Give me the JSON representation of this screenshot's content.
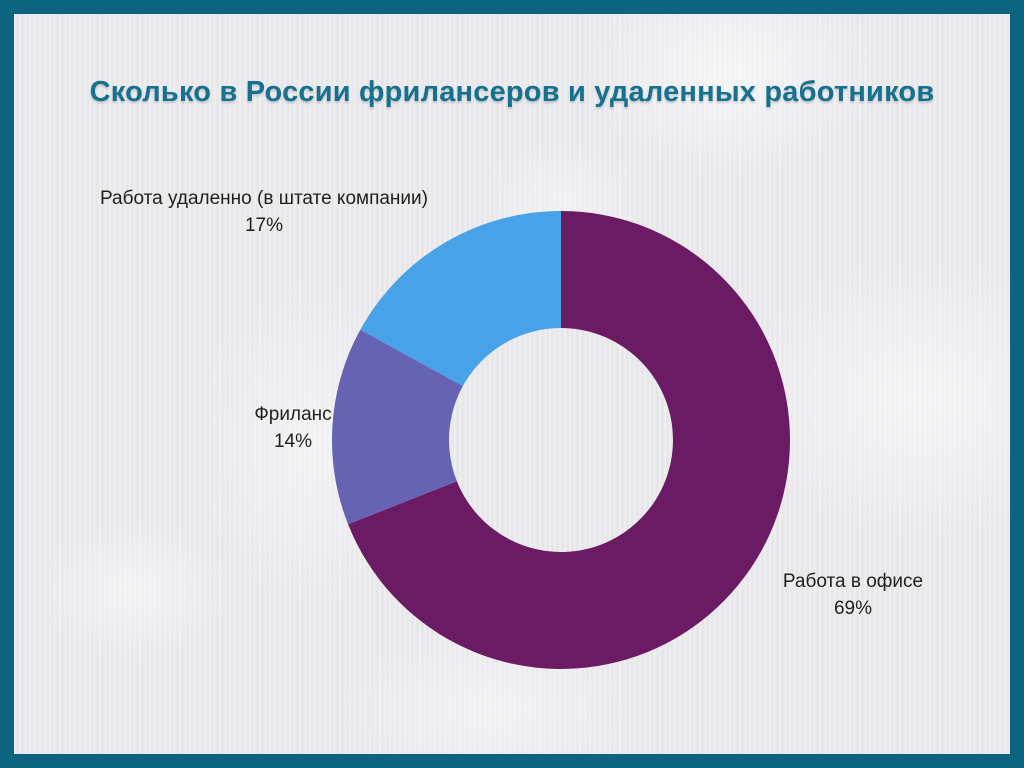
{
  "style": {
    "frame_color": "#0d6480",
    "canvas_color": "#ecebee",
    "title_color": "#16718f",
    "label_color": "#1f1f1f"
  },
  "chart_data": {
    "type": "pie",
    "subtype": "donut",
    "title": "Сколько в России фрилансеров и удаленных работников",
    "categories": [
      "Работа в офисе",
      "Фриланс",
      "Работа удаленно (в штате компании)"
    ],
    "values": [
      69,
      14,
      17
    ],
    "value_labels": [
      "69%",
      "14%",
      "17%"
    ],
    "unit": "%",
    "colors": [
      "#6a1b63",
      "#6663b5",
      "#48a2e8"
    ],
    "start_angle_deg": 0,
    "direction": "clockwise",
    "donut_hole_ratio": 0.489,
    "legend_position": "none",
    "label_style": "outside"
  }
}
